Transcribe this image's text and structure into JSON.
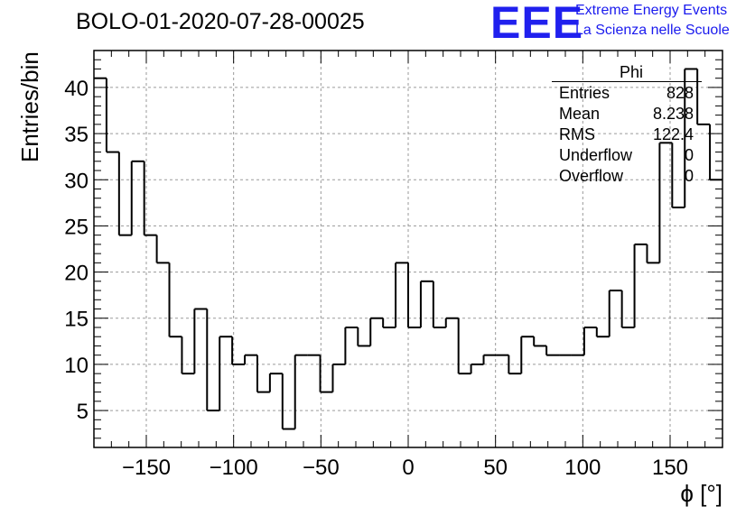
{
  "chart_data": {
    "type": "histogram",
    "title": "BOLO-01-2020-07-28-00025",
    "xlabel": "ϕ [°]",
    "ylabel": "Entries/bin",
    "xlim": [
      -180,
      180
    ],
    "ylim": [
      1,
      44
    ],
    "grid": true,
    "bin_edges_start": -180,
    "bin_width": 7.2,
    "counts": [
      41,
      33,
      24,
      32,
      24,
      21,
      13,
      9,
      16,
      5,
      13,
      10,
      11,
      7,
      9,
      3,
      11,
      11,
      7,
      10,
      14,
      12,
      15,
      14,
      21,
      14,
      19,
      14,
      15,
      9,
      10,
      11,
      11,
      9,
      13,
      12,
      11,
      11,
      11,
      14,
      13,
      18,
      14,
      23,
      21,
      34,
      27,
      42,
      36,
      30
    ],
    "x_ticks": [
      "−150",
      "−100",
      "−50",
      "0",
      "50",
      "100",
      "150"
    ],
    "x_tick_values": [
      -150,
      -100,
      -50,
      0,
      50,
      100,
      150
    ],
    "y_ticks": [
      "5",
      "10",
      "15",
      "20",
      "25",
      "30",
      "35",
      "40"
    ],
    "y_tick_values": [
      5,
      10,
      15,
      20,
      25,
      30,
      35,
      40
    ],
    "stats_box": {
      "name": "Phi",
      "rows": [
        {
          "label": "Entries",
          "value": "828"
        },
        {
          "label": "Mean",
          "value": "8.238"
        },
        {
          "label": "RMS",
          "value": "122.4"
        },
        {
          "label": "Underflow",
          "value": "0"
        },
        {
          "label": "Overflow",
          "value": "0"
        }
      ]
    }
  },
  "logo": {
    "mark": "EEE",
    "line1": "Extreme Energy Events",
    "line2": "La Scienza nelle Scuole"
  },
  "colors": {
    "logo": "#1a1aee",
    "line": "#000000",
    "grid": "#9a9a9a"
  }
}
